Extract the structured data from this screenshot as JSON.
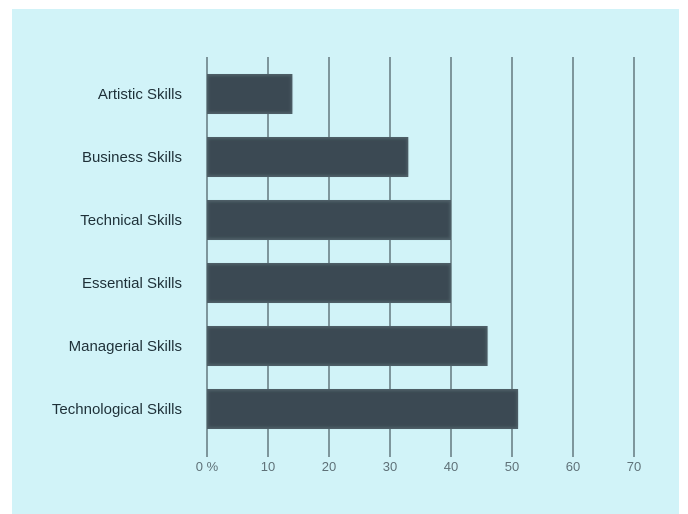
{
  "chart_data": {
    "type": "bar",
    "orientation": "horizontal",
    "categories": [
      "Artistic Skills",
      "Business Skills",
      "Technical Skills",
      "Essential Skills",
      "Managerial Skills",
      "Technological Skills"
    ],
    "values": [
      14,
      33,
      40,
      40,
      46,
      51
    ],
    "x_ticks": [
      "0 %",
      "10",
      "20",
      "30",
      "40",
      "50",
      "60",
      "70"
    ],
    "xlim": [
      0,
      70
    ],
    "grid": "vertical",
    "title": "",
    "xlabel": "",
    "ylabel": ""
  },
  "colors": {
    "panel_background": "#d1f3f8",
    "bar_fill": "#3a4a52",
    "bar_edge": "#4f6068",
    "grid_line": "#2c3a40",
    "category_text": "#1e3038",
    "tick_text": "#5f7178"
  }
}
